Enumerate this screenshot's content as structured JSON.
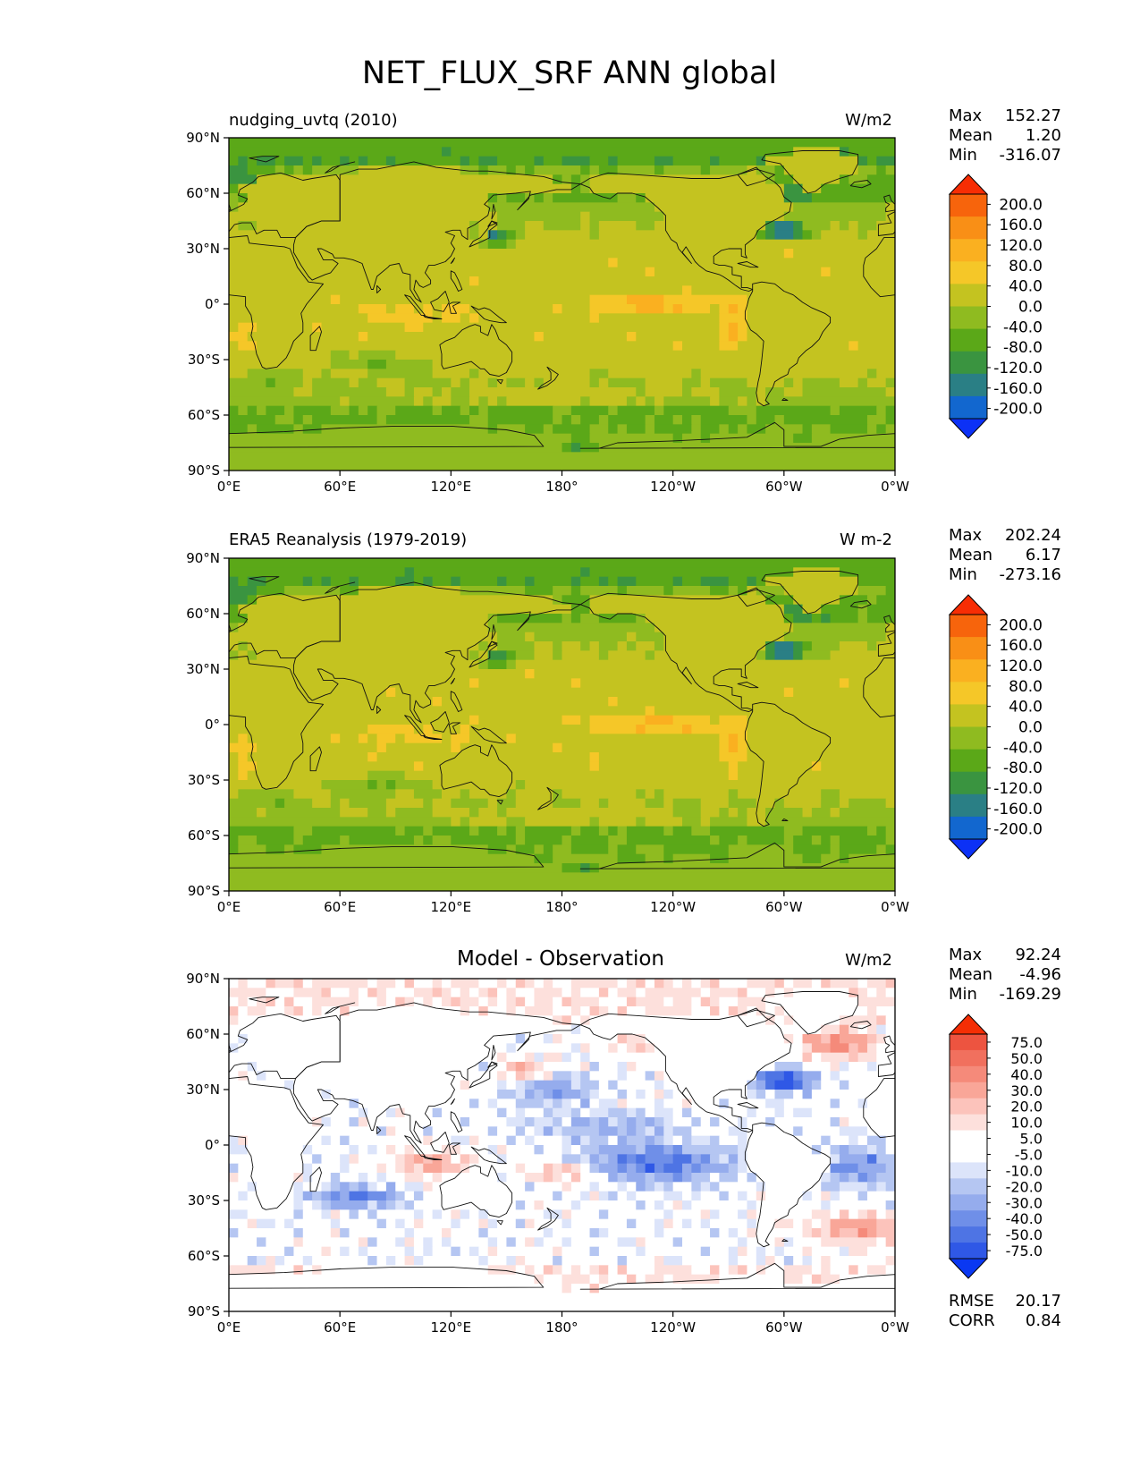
{
  "figure": {
    "title": "NET_FLUX_SRF ANN global"
  },
  "colors": {
    "main_levels": [
      "#0c31f6",
      "#1267cf",
      "#2a7f85",
      "#3a9440",
      "#5ba818",
      "#8fbb20",
      "#c4c320",
      "#f5c728",
      "#fab020",
      "#f98f16",
      "#f7640c",
      "#f72d04"
    ],
    "diff_levels": [
      "#0a38f2",
      "#2f58e6",
      "#4e74e4",
      "#6f8fe8",
      "#95aced",
      "#b5c6f2",
      "#dce4fa",
      "#ffffff",
      "#ffffff",
      "#fde0dc",
      "#fcc3bb",
      "#f9a698",
      "#f58a7a",
      "#f1705e",
      "#ed5440",
      "#f42e05"
    ],
    "land_main": "#c4c320",
    "land_diff": "#ffffff"
  },
  "chart_data": [
    {
      "type": "heatmap",
      "id": "model",
      "title": "",
      "left_title": "nudging_uvtq (2010)",
      "units": "W/m2",
      "stats": [
        {
          "label": "Max",
          "value": "152.27"
        },
        {
          "label": "Mean",
          "value": "1.20"
        },
        {
          "label": "Min",
          "value": "-316.07"
        }
      ],
      "colorbar_labels": [
        "200.0",
        "160.0",
        "120.0",
        "80.0",
        "40.0",
        "0.0",
        "-40.0",
        "-80.0",
        "-120.0",
        "-160.0",
        "-200.0"
      ],
      "colorbar_levels": [
        -200,
        -160,
        -120,
        -80,
        -40,
        0,
        40,
        80,
        120,
        160,
        200
      ],
      "xticks": [
        "0°E",
        "60°E",
        "120°E",
        "180°",
        "120°W",
        "60°W",
        "0°W"
      ],
      "yticks": [
        "90°N",
        "60°N",
        "30°N",
        "0°",
        "30°S",
        "60°S",
        "90°S"
      ],
      "xlim": [
        0,
        360
      ],
      "ylim": [
        -90,
        90
      ],
      "footer": []
    },
    {
      "type": "heatmap",
      "id": "obs",
      "title": "",
      "left_title": "ERA5 Reanalysis (1979-2019)",
      "units": "W m-2",
      "stats": [
        {
          "label": "Max",
          "value": "202.24"
        },
        {
          "label": "Mean",
          "value": "6.17"
        },
        {
          "label": "Min",
          "value": "-273.16"
        }
      ],
      "colorbar_labels": [
        "200.0",
        "160.0",
        "120.0",
        "80.0",
        "40.0",
        "0.0",
        "-40.0",
        "-80.0",
        "-120.0",
        "-160.0",
        "-200.0"
      ],
      "colorbar_levels": [
        -200,
        -160,
        -120,
        -80,
        -40,
        0,
        40,
        80,
        120,
        160,
        200
      ],
      "xticks": [
        "0°E",
        "60°E",
        "120°E",
        "180°",
        "120°W",
        "60°W",
        "0°W"
      ],
      "yticks": [
        "90°N",
        "60°N",
        "30°N",
        "0°",
        "30°S",
        "60°S",
        "90°S"
      ],
      "xlim": [
        0,
        360
      ],
      "ylim": [
        -90,
        90
      ],
      "footer": []
    },
    {
      "type": "heatmap",
      "id": "diff",
      "title": "Model - Observation",
      "left_title": "",
      "units": "W/m2",
      "stats": [
        {
          "label": "Max",
          "value": "92.24"
        },
        {
          "label": "Mean",
          "value": "-4.96"
        },
        {
          "label": "Min",
          "value": "-169.29"
        }
      ],
      "colorbar_labels": [
        "75.0",
        "50.0",
        "40.0",
        "30.0",
        "20.0",
        "10.0",
        "5.0",
        "-5.0",
        "-10.0",
        "-20.0",
        "-30.0",
        "-40.0",
        "-50.0",
        "-75.0"
      ],
      "colorbar_levels": [
        -75,
        -50,
        -40,
        -30,
        -20,
        -10,
        -5,
        5,
        10,
        20,
        30,
        40,
        50,
        75
      ],
      "xticks": [
        "0°E",
        "60°E",
        "120°E",
        "180°",
        "120°W",
        "60°W",
        "0°W"
      ],
      "yticks": [
        "90°N",
        "60°N",
        "30°N",
        "0°",
        "30°S",
        "60°S",
        "90°S"
      ],
      "xlim": [
        0,
        360
      ],
      "ylim": [
        -90,
        90
      ],
      "footer": [
        {
          "label": "RMSE",
          "value": "20.17"
        },
        {
          "label": "CORR",
          "value": "0.84"
        }
      ]
    }
  ]
}
